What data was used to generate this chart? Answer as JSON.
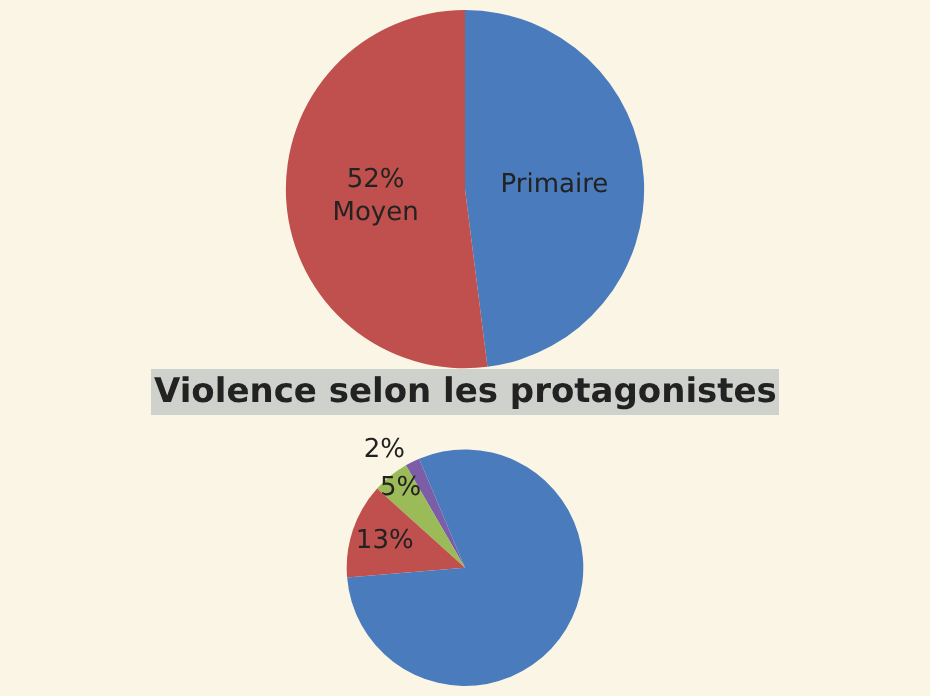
{
  "chart_data": [
    {
      "type": "pie",
      "categories": [
        "Primaire",
        "Moyen"
      ],
      "values": [
        48,
        52
      ],
      "colors": [
        "#4a7bbd",
        "#c0504d"
      ],
      "value_labels": [
        null,
        "52%"
      ]
    },
    {
      "type": "pie",
      "title": "Violence selon les protagonistes",
      "categories": [
        null,
        null,
        null,
        null
      ],
      "values": [
        2,
        5,
        13,
        80
      ],
      "colors": [
        "#7b5ea7",
        "#9bbb59",
        "#c0504d",
        "#4a7bbd"
      ],
      "value_labels": [
        "2%",
        "5%",
        "13%",
        null
      ]
    }
  ]
}
